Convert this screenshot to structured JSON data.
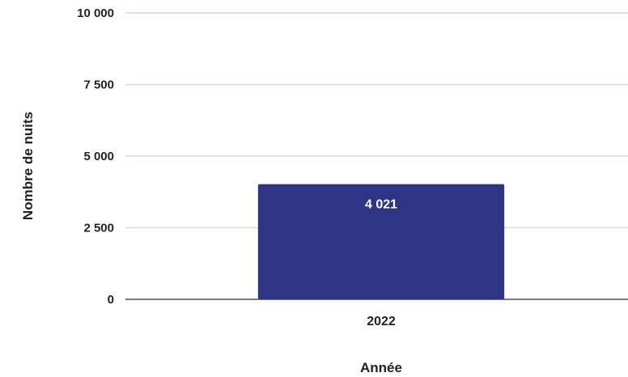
{
  "chart_data": {
    "type": "bar",
    "categories": [
      "2022"
    ],
    "series": [
      {
        "values": [
          4021
        ],
        "data_labels": [
          "4 021"
        ]
      }
    ],
    "xlabel": "Année",
    "ylabel": "Nombre de nuits",
    "ylim": [
      0,
      10000
    ],
    "yticks": [
      0,
      2500,
      5000,
      7500,
      10000
    ],
    "ytick_labels": [
      "0",
      "2 500",
      "5 000",
      "7 500",
      "10 000"
    ],
    "grid": true,
    "legend": "none",
    "colors": {
      "bar": "#2e3585",
      "grid": "#d9d9d9",
      "baseline": "#7a7a7a"
    }
  }
}
